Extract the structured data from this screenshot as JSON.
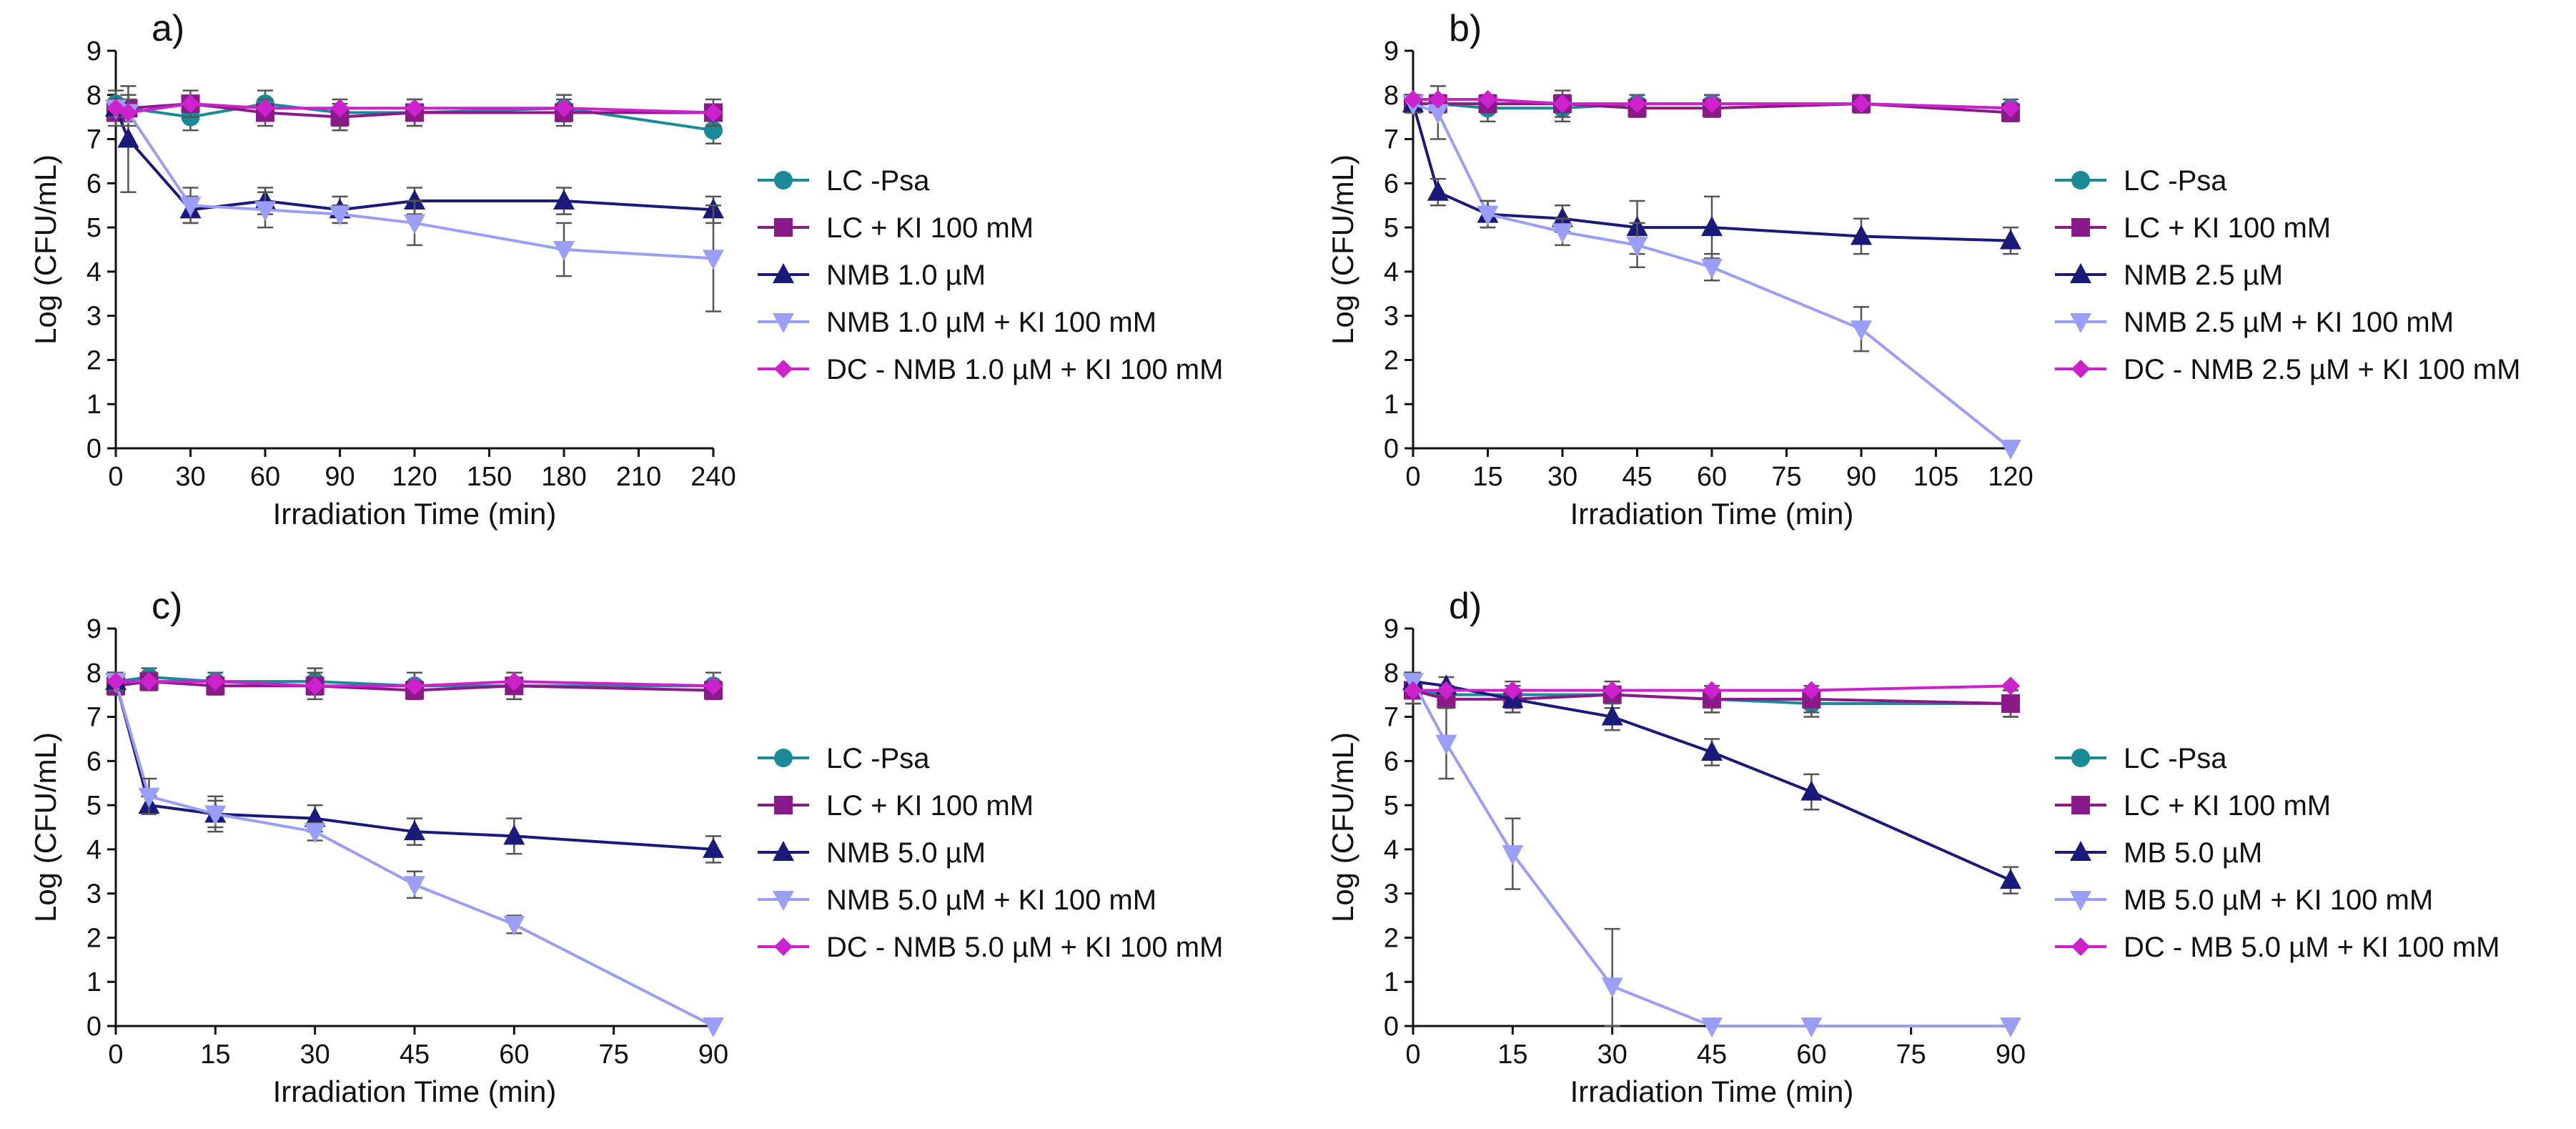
{
  "chart_data": [
    {
      "type": "line",
      "panel_label": "a)",
      "xlabel": "Irradiation Time (min)",
      "ylabel": "Log (CFU/mL)",
      "xlim": [
        0,
        240
      ],
      "ylim": [
        0,
        9
      ],
      "xticks": [
        0,
        30,
        60,
        90,
        120,
        150,
        180,
        210,
        240
      ],
      "yticks": [
        0,
        1,
        2,
        3,
        4,
        5,
        6,
        7,
        8,
        9
      ],
      "legend_position": "right",
      "series": [
        {
          "name": "LC -Psa",
          "color": "#1a8a96",
          "marker": "circle",
          "x": [
            0,
            5,
            30,
            60,
            90,
            120,
            180,
            240
          ],
          "y": [
            7.8,
            7.7,
            7.5,
            7.8,
            7.6,
            7.6,
            7.7,
            7.2
          ],
          "err": [
            0.3,
            0.3,
            0.3,
            0.3,
            0.3,
            0.3,
            0.3,
            0.3
          ]
        },
        {
          "name": "LC + KI 100 mM",
          "color": "#8a1a8a",
          "marker": "square",
          "x": [
            0,
            5,
            30,
            60,
            90,
            120,
            180,
            240
          ],
          "y": [
            7.6,
            7.7,
            7.8,
            7.6,
            7.5,
            7.6,
            7.6,
            7.6
          ],
          "err": [
            0.3,
            0.3,
            0.3,
            0.3,
            0.3,
            0.3,
            0.3,
            0.3
          ]
        },
        {
          "name": "NMB 1.0 µM",
          "color": "#1a1a7a",
          "marker": "triangle-up",
          "x": [
            0,
            5,
            30,
            60,
            90,
            120,
            180,
            240
          ],
          "y": [
            7.7,
            7.0,
            5.4,
            5.6,
            5.4,
            5.6,
            5.6,
            5.4
          ],
          "err": [
            0.2,
            1.2,
            0.3,
            0.3,
            0.3,
            0.3,
            0.3,
            0.3
          ]
        },
        {
          "name": "NMB 1.0 µM + KI 100 mM",
          "color": "#9a9ef6",
          "marker": "triangle-down",
          "x": [
            0,
            5,
            30,
            60,
            90,
            120,
            180,
            240
          ],
          "y": [
            7.7,
            7.6,
            5.5,
            5.4,
            5.3,
            5.1,
            4.5,
            4.3
          ],
          "err": [
            0.2,
            0.3,
            0.4,
            0.4,
            0.2,
            0.5,
            0.6,
            1.2
          ]
        },
        {
          "name": "DC - NMB 1.0 µM + KI 100 mM",
          "color": "#cc22cc",
          "marker": "diamond",
          "x": [
            0,
            5,
            30,
            60,
            90,
            120,
            180,
            240
          ],
          "y": [
            7.7,
            7.6,
            7.8,
            7.7,
            7.7,
            7.7,
            7.7,
            7.6
          ],
          "err": [
            0,
            0,
            0,
            0,
            0,
            0,
            0,
            0
          ]
        }
      ]
    },
    {
      "type": "line",
      "panel_label": "b)",
      "xlabel": "Irradiation Time (min)",
      "ylabel": "Log (CFU/mL)",
      "xlim": [
        0,
        120
      ],
      "ylim": [
        0,
        9
      ],
      "xticks": [
        0,
        15,
        30,
        45,
        60,
        75,
        90,
        105,
        120
      ],
      "yticks": [
        0,
        1,
        2,
        3,
        4,
        5,
        6,
        7,
        8,
        9
      ],
      "legend_position": "right",
      "series": [
        {
          "name": "LC -Psa",
          "color": "#1a8a96",
          "marker": "circle",
          "x": [
            0,
            5,
            15,
            30,
            45,
            60,
            90,
            120
          ],
          "y": [
            7.8,
            7.8,
            7.7,
            7.7,
            7.8,
            7.8,
            7.8,
            7.7
          ],
          "err": [
            0.2,
            0.2,
            0.3,
            0.3,
            0.2,
            0.2,
            0.2,
            0.2
          ]
        },
        {
          "name": "LC + KI 100 mM",
          "color": "#8a1a8a",
          "marker": "square",
          "x": [
            0,
            5,
            15,
            30,
            45,
            60,
            90,
            120
          ],
          "y": [
            7.8,
            7.8,
            7.8,
            7.8,
            7.7,
            7.7,
            7.8,
            7.6
          ],
          "err": [
            0.2,
            0.2,
            0.2,
            0.3,
            0.2,
            0.2,
            0.2,
            0.2
          ]
        },
        {
          "name": "NMB 2.5 µM",
          "color": "#1a1a7a",
          "marker": "triangle-up",
          "x": [
            0,
            5,
            15,
            30,
            45,
            60,
            90,
            120
          ],
          "y": [
            7.8,
            5.8,
            5.3,
            5.2,
            5.0,
            5.0,
            4.8,
            4.7
          ],
          "err": [
            0.2,
            0.3,
            0.3,
            0.3,
            0.6,
            0.7,
            0.4,
            0.3
          ]
        },
        {
          "name": "NMB 2.5 µM + KI 100 mM",
          "color": "#9a9ef6",
          "marker": "triangle-down",
          "x": [
            0,
            5,
            15,
            30,
            45,
            60,
            90,
            120
          ],
          "y": [
            7.8,
            7.6,
            5.3,
            4.9,
            4.6,
            4.1,
            2.7,
            0.0
          ],
          "err": [
            0.2,
            0.6,
            0.3,
            0.3,
            0.5,
            0.3,
            0.5,
            0
          ]
        },
        {
          "name": "DC - NMB 2.5 µM + KI 100 mM",
          "color": "#cc22cc",
          "marker": "diamond",
          "x": [
            0,
            5,
            15,
            30,
            45,
            60,
            90,
            120
          ],
          "y": [
            7.9,
            7.9,
            7.9,
            7.8,
            7.8,
            7.8,
            7.8,
            7.7
          ],
          "err": [
            0,
            0,
            0,
            0,
            0,
            0,
            0,
            0
          ]
        }
      ]
    },
    {
      "type": "line",
      "panel_label": "c)",
      "xlabel": "Irradiation Time (min)",
      "ylabel": "Log (CFU/mL)",
      "xlim": [
        0,
        90
      ],
      "ylim": [
        0,
        9
      ],
      "xticks": [
        0,
        15,
        30,
        45,
        60,
        75,
        90
      ],
      "yticks": [
        0,
        1,
        2,
        3,
        4,
        5,
        6,
        7,
        8,
        9
      ],
      "legend_position": "right",
      "series": [
        {
          "name": "LC -Psa",
          "color": "#1a8a96",
          "marker": "circle",
          "x": [
            0,
            5,
            15,
            30,
            45,
            60,
            90
          ],
          "y": [
            7.8,
            7.9,
            7.8,
            7.8,
            7.7,
            7.7,
            7.7
          ],
          "err": [
            0.2,
            0.2,
            0.2,
            0.3,
            0.3,
            0.3,
            0.3
          ]
        },
        {
          "name": "LC + KI 100 mM",
          "color": "#8a1a8a",
          "marker": "square",
          "x": [
            0,
            5,
            15,
            30,
            45,
            60,
            90
          ],
          "y": [
            7.7,
            7.8,
            7.7,
            7.7,
            7.6,
            7.7,
            7.6
          ],
          "err": [
            0.2,
            0.2,
            0.2,
            0.3,
            0.2,
            0.3,
            0.2
          ]
        },
        {
          "name": "NMB 5.0 µM",
          "color": "#1a1a7a",
          "marker": "triangle-up",
          "x": [
            0,
            5,
            15,
            30,
            45,
            60,
            90
          ],
          "y": [
            7.8,
            5.0,
            4.8,
            4.7,
            4.4,
            4.3,
            4.0
          ],
          "err": [
            0.2,
            0.2,
            0.4,
            0.3,
            0.3,
            0.4,
            0.3
          ]
        },
        {
          "name": "NMB 5.0 µM + KI 100 mM",
          "color": "#9a9ef6",
          "marker": "triangle-down",
          "x": [
            0,
            5,
            15,
            30,
            45,
            60,
            90
          ],
          "y": [
            7.8,
            5.2,
            4.8,
            4.4,
            3.2,
            2.3,
            0.0
          ],
          "err": [
            0.2,
            0.4,
            0.3,
            0.2,
            0.3,
            0.2,
            0
          ]
        },
        {
          "name": "DC - NMB 5.0 µM + KI 100 mM",
          "color": "#cc22cc",
          "marker": "diamond",
          "x": [
            0,
            5,
            15,
            30,
            45,
            60,
            90
          ],
          "y": [
            7.8,
            7.8,
            7.8,
            7.7,
            7.7,
            7.8,
            7.7
          ],
          "err": [
            0,
            0,
            0,
            0,
            0,
            0,
            0
          ]
        }
      ]
    },
    {
      "type": "line",
      "panel_label": "d)",
      "xlabel": "Irradiation Time (min)",
      "ylabel": "Log (CFU/mL)",
      "xlim": [
        0,
        90
      ],
      "ylim": [
        0,
        9
      ],
      "xticks": [
        0,
        15,
        30,
        45,
        60,
        75,
        90
      ],
      "yticks": [
        0,
        1,
        2,
        3,
        4,
        5,
        6,
        7,
        8,
        9
      ],
      "legend_position": "right",
      "series": [
        {
          "name": "LC -Psa",
          "color": "#1a8a96",
          "marker": "circle",
          "x": [
            0,
            5,
            15,
            30,
            45,
            60,
            90
          ],
          "y": [
            7.6,
            7.5,
            7.5,
            7.5,
            7.4,
            7.3,
            7.3
          ],
          "err": [
            0.3,
            0.2,
            0.3,
            0.3,
            0.3,
            0.3,
            0.3
          ]
        },
        {
          "name": "LC + KI 100 mM",
          "color": "#8a1a8a",
          "marker": "square",
          "x": [
            0,
            5,
            15,
            30,
            45,
            60,
            90
          ],
          "y": [
            7.6,
            7.4,
            7.4,
            7.5,
            7.4,
            7.4,
            7.3
          ],
          "err": [
            0.3,
            0.2,
            0.3,
            0.3,
            0.3,
            0.3,
            0.3
          ]
        },
        {
          "name": "MB 5.0 µM",
          "color": "#1a1a7a",
          "marker": "triangle-up",
          "x": [
            0,
            5,
            15,
            30,
            45,
            60,
            90
          ],
          "y": [
            7.8,
            7.7,
            7.4,
            7.0,
            6.2,
            5.3,
            3.3
          ],
          "err": [
            0.2,
            0.2,
            0.3,
            0.3,
            0.3,
            0.4,
            0.3
          ]
        },
        {
          "name": "MB 5.0 µM + KI 100 mM",
          "color": "#9a9ef6",
          "marker": "triangle-down",
          "x": [
            0,
            5,
            15,
            30,
            45,
            60,
            90
          ],
          "y": [
            7.8,
            6.4,
            3.9,
            0.9,
            0.0,
            0.0,
            0.0
          ],
          "err": [
            0.2,
            0.8,
            0.8,
            1.3,
            0,
            0,
            0
          ]
        },
        {
          "name": "DC - MB 5.0 µM + KI 100 mM",
          "color": "#cc22cc",
          "marker": "diamond",
          "x": [
            0,
            5,
            15,
            30,
            45,
            60,
            90
          ],
          "y": [
            7.6,
            7.6,
            7.6,
            7.6,
            7.6,
            7.6,
            7.7
          ],
          "err": [
            0,
            0,
            0,
            0,
            0,
            0,
            0
          ]
        }
      ]
    }
  ]
}
